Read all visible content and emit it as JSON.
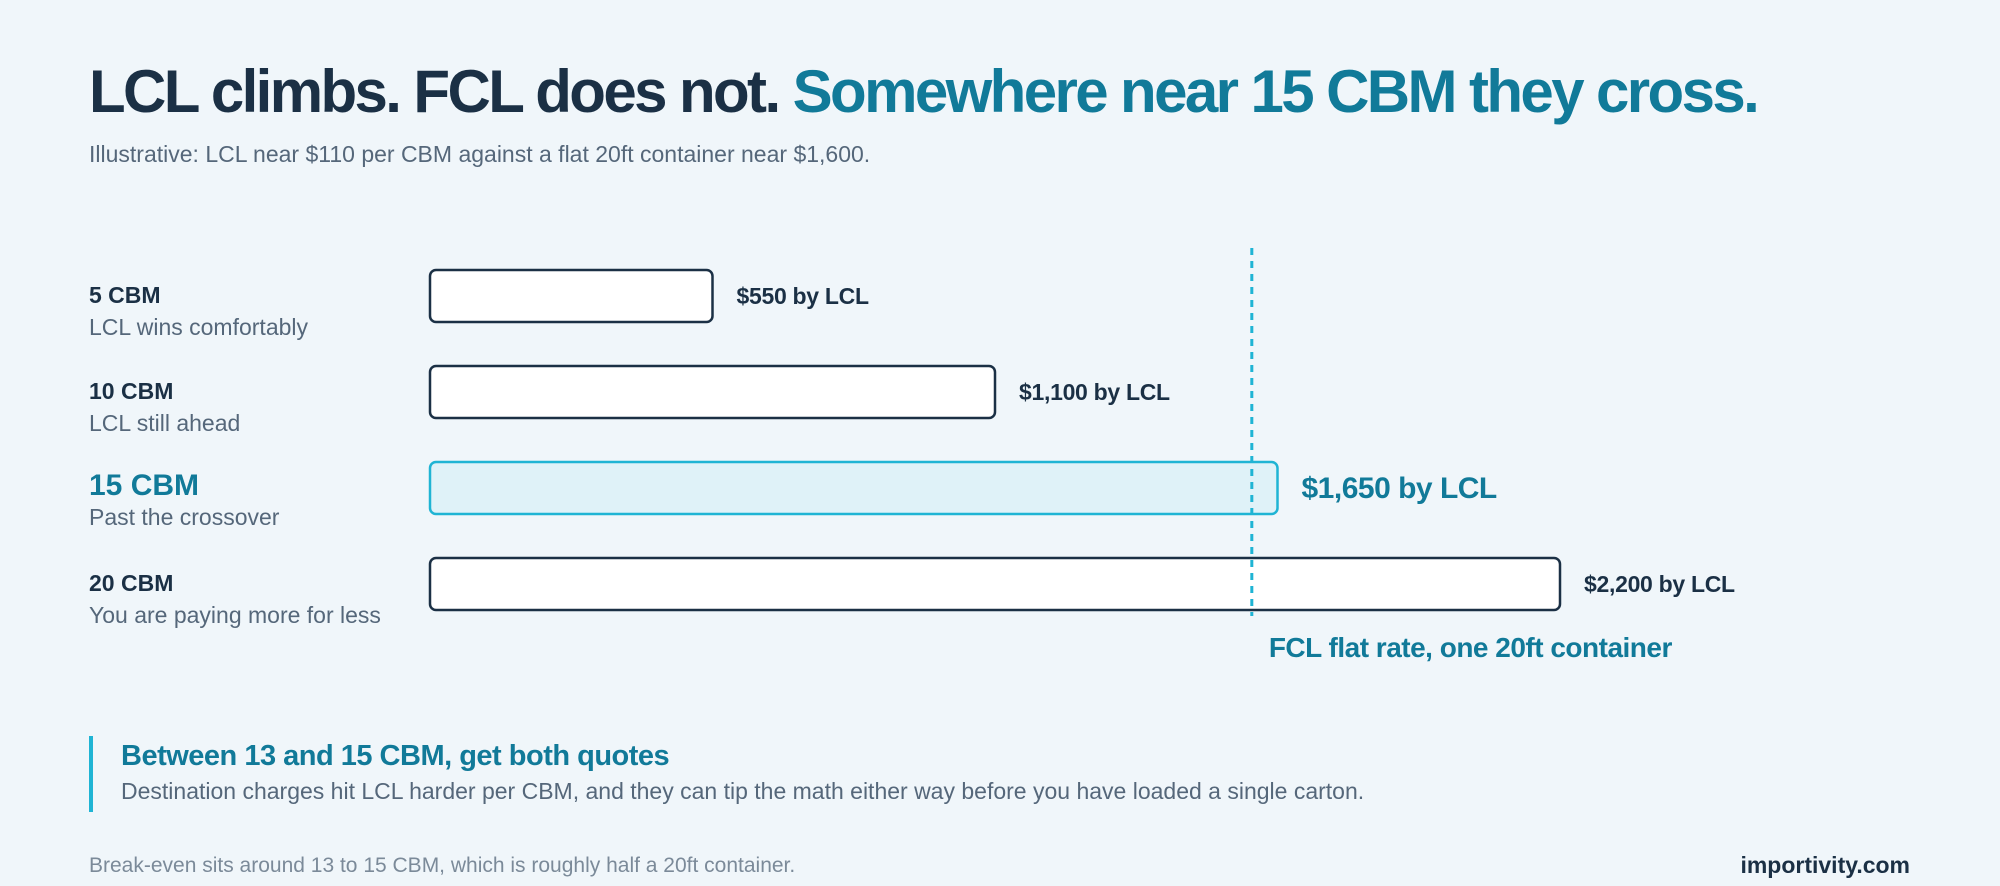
{
  "headline": {
    "part1": "LCL climbs. FCL does not.",
    "part2": "Somewhere near 15 CBM they cross."
  },
  "subtitle": "Illustrative: LCL near $110 per CBM against a flat 20ft container near $1,600.",
  "rows": [
    {
      "volume": "5 CBM",
      "note": "LCL wins comfortably"
    },
    {
      "volume": "10 CBM",
      "note": "LCL still ahead"
    },
    {
      "volume": "15 CBM",
      "note": "Past the crossover"
    },
    {
      "volume": "20 CBM",
      "note": "You are paying more for less"
    }
  ],
  "chart_data": {
    "type": "bar",
    "orientation": "horizontal",
    "categories": [
      "5 CBM",
      "10 CBM",
      "15 CBM",
      "20 CBM"
    ],
    "values": [
      550,
      1100,
      1650,
      2200
    ],
    "value_labels": [
      "$550 by LCL",
      "$1,100 by LCL",
      "$1,650 by LCL",
      "$2,200 by LCL"
    ],
    "highlight_index": 2,
    "reference_line": {
      "value": 1600,
      "label": "FCL flat rate, one 20ft container"
    },
    "colors": {
      "bar_stroke": "#1b3045",
      "bar_fill": "#ffffff",
      "highlight_stroke": "#1fb4d4",
      "highlight_fill": "#dff2f8",
      "highlight_text": "#117a99",
      "reference": "#1fb4d4"
    }
  },
  "callout": {
    "title": "Between 13 and 15 CBM, get both quotes",
    "body": "Destination charges hit LCL harder per CBM, and they can tip the math either way before you have loaded a single carton."
  },
  "footnote": "Break-even sits around 13 to 15 CBM, which is roughly half a 20ft container.",
  "brand": "importivity.com"
}
